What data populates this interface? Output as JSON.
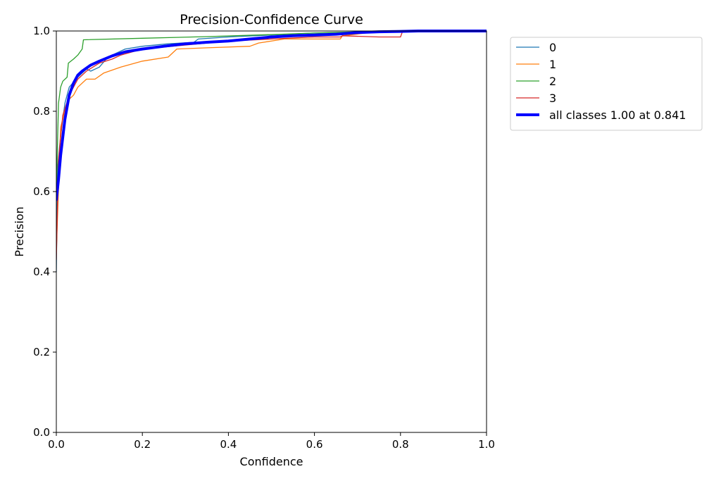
{
  "chart_data": {
    "type": "line",
    "title": "Precision-Confidence Curve",
    "xlabel": "Confidence",
    "ylabel": "Precision",
    "xlim": [
      0,
      1
    ],
    "ylim": [
      0,
      1
    ],
    "xticks": [
      "0.0",
      "0.2",
      "0.4",
      "0.6",
      "0.8",
      "1.0"
    ],
    "yticks": [
      "0.0",
      "0.2",
      "0.4",
      "0.6",
      "0.8",
      "1.0"
    ],
    "grid": false,
    "legend_position": "outside-top-right",
    "series": [
      {
        "name": "0",
        "color": "#1f77b4",
        "width": 1.3,
        "points": [
          [
            0,
            0.4
          ],
          [
            0.003,
            0.66
          ],
          [
            0.01,
            0.74
          ],
          [
            0.02,
            0.82
          ],
          [
            0.03,
            0.86
          ],
          [
            0.05,
            0.885
          ],
          [
            0.07,
            0.905
          ],
          [
            0.08,
            0.9
          ],
          [
            0.1,
            0.91
          ],
          [
            0.12,
            0.935
          ],
          [
            0.16,
            0.955
          ],
          [
            0.2,
            0.962
          ],
          [
            0.26,
            0.968
          ],
          [
            0.32,
            0.972
          ],
          [
            0.33,
            0.98
          ],
          [
            0.4,
            0.985
          ],
          [
            0.5,
            0.99
          ],
          [
            0.6,
            0.995
          ],
          [
            0.7,
            0.997
          ],
          [
            0.8,
            0.999
          ],
          [
            1.0,
            1.0
          ]
        ]
      },
      {
        "name": "1",
        "color": "#ff7f0e",
        "width": 1.3,
        "points": [
          [
            0,
            0.45
          ],
          [
            0.01,
            0.76
          ],
          [
            0.02,
            0.8
          ],
          [
            0.03,
            0.83
          ],
          [
            0.04,
            0.84
          ],
          [
            0.05,
            0.86
          ],
          [
            0.07,
            0.88
          ],
          [
            0.09,
            0.88
          ],
          [
            0.11,
            0.895
          ],
          [
            0.15,
            0.91
          ],
          [
            0.2,
            0.925
          ],
          [
            0.26,
            0.935
          ],
          [
            0.28,
            0.955
          ],
          [
            0.35,
            0.958
          ],
          [
            0.45,
            0.962
          ],
          [
            0.47,
            0.97
          ],
          [
            0.53,
            0.98
          ],
          [
            0.66,
            0.98
          ],
          [
            0.665,
            0.988
          ],
          [
            0.72,
            0.995
          ],
          [
            0.8,
            0.998
          ],
          [
            1.0,
            1.0
          ]
        ]
      },
      {
        "name": "2",
        "color": "#2ca02c",
        "width": 1.3,
        "points": [
          [
            0,
            0.6
          ],
          [
            0.005,
            0.82
          ],
          [
            0.01,
            0.86
          ],
          [
            0.015,
            0.875
          ],
          [
            0.025,
            0.885
          ],
          [
            0.028,
            0.92
          ],
          [
            0.04,
            0.93
          ],
          [
            0.05,
            0.94
          ],
          [
            0.06,
            0.955
          ],
          [
            0.063,
            0.978
          ],
          [
            0.2,
            0.982
          ],
          [
            0.35,
            0.986
          ],
          [
            0.5,
            0.991
          ],
          [
            0.6,
            0.995
          ],
          [
            0.7,
            0.998
          ],
          [
            1.0,
            1.0
          ]
        ]
      },
      {
        "name": "3",
        "color": "#d62728",
        "width": 1.3,
        "points": [
          [
            0,
            0.43
          ],
          [
            0.005,
            0.68
          ],
          [
            0.015,
            0.79
          ],
          [
            0.03,
            0.84
          ],
          [
            0.05,
            0.88
          ],
          [
            0.07,
            0.9
          ],
          [
            0.1,
            0.92
          ],
          [
            0.13,
            0.93
          ],
          [
            0.15,
            0.94
          ],
          [
            0.2,
            0.955
          ],
          [
            0.3,
            0.965
          ],
          [
            0.4,
            0.975
          ],
          [
            0.5,
            0.98
          ],
          [
            0.6,
            0.985
          ],
          [
            0.66,
            0.985
          ],
          [
            0.665,
            0.988
          ],
          [
            0.75,
            0.985
          ],
          [
            0.8,
            0.985
          ],
          [
            0.805,
            1.0
          ],
          [
            1.0,
            1.0
          ]
        ]
      },
      {
        "name": "all classes 1.00 at 0.841",
        "color": "#0000ff",
        "width": 4,
        "points": [
          [
            0,
            0.58
          ],
          [
            0.005,
            0.63
          ],
          [
            0.01,
            0.69
          ],
          [
            0.02,
            0.78
          ],
          [
            0.03,
            0.84
          ],
          [
            0.04,
            0.87
          ],
          [
            0.05,
            0.89
          ],
          [
            0.06,
            0.9
          ],
          [
            0.08,
            0.915
          ],
          [
            0.1,
            0.925
          ],
          [
            0.13,
            0.938
          ],
          [
            0.16,
            0.948
          ],
          [
            0.2,
            0.955
          ],
          [
            0.25,
            0.962
          ],
          [
            0.3,
            0.968
          ],
          [
            0.35,
            0.972
          ],
          [
            0.4,
            0.975
          ],
          [
            0.45,
            0.98
          ],
          [
            0.5,
            0.985
          ],
          [
            0.55,
            0.988
          ],
          [
            0.6,
            0.99
          ],
          [
            0.65,
            0.992
          ],
          [
            0.7,
            0.996
          ],
          [
            0.75,
            0.998
          ],
          [
            0.8,
            0.999
          ],
          [
            0.841,
            1.0
          ],
          [
            1.0,
            1.0
          ]
        ]
      }
    ]
  }
}
